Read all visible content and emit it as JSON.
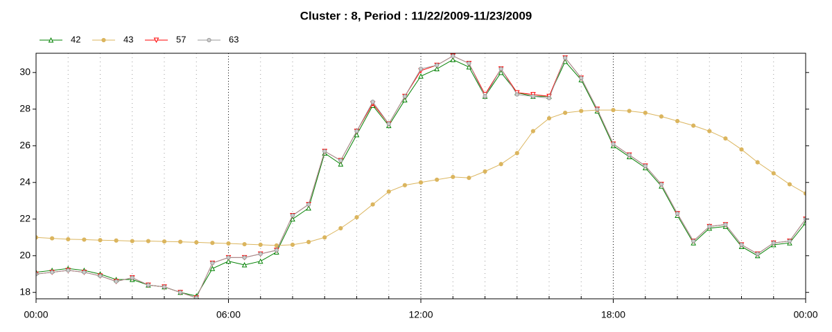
{
  "chart_data": {
    "type": "line",
    "title": "Cluster : 8, Period : 11/22/2009-11/23/2009",
    "x": [
      0,
      0.5,
      1,
      1.5,
      2,
      2.5,
      3,
      3.5,
      4,
      4.5,
      5,
      5.5,
      6,
      6.5,
      7,
      7.5,
      8,
      8.5,
      9,
      9.5,
      10,
      10.5,
      11,
      11.5,
      12,
      12.5,
      13,
      13.5,
      14,
      14.5,
      15,
      15.5,
      16,
      16.5,
      17,
      17.5,
      18,
      18.5,
      19,
      19.5,
      20,
      20.5,
      21,
      21.5,
      22,
      22.5,
      23,
      23.5,
      24
    ],
    "xlim": [
      0,
      24
    ],
    "xticks": [
      {
        "value": 0,
        "label": "00:00"
      },
      {
        "value": 6,
        "label": "06:00"
      },
      {
        "value": 12,
        "label": "12:00"
      },
      {
        "value": 18,
        "label": "18:00"
      },
      {
        "value": 24,
        "label": "00:00"
      }
    ],
    "xminorticks": [
      1,
      2,
      3,
      4,
      5,
      7,
      8,
      9,
      10,
      11,
      13,
      14,
      15,
      16,
      17,
      19,
      20,
      21,
      22,
      23
    ],
    "ylim": [
      17.65,
      31.05
    ],
    "yticks": [
      18,
      20,
      22,
      24,
      26,
      28,
      30
    ],
    "grid": "x",
    "legend": "top-left",
    "series": [
      {
        "name": "42",
        "color": "#008000",
        "marker": "triangle",
        "values": [
          19.1,
          19.2,
          19.3,
          19.2,
          19.0,
          18.7,
          18.7,
          18.4,
          18.3,
          18.0,
          17.8,
          19.3,
          19.7,
          19.5,
          19.7,
          20.2,
          22.0,
          22.6,
          25.6,
          25.0,
          26.6,
          28.2,
          27.1,
          28.5,
          29.8,
          30.2,
          30.7,
          30.3,
          28.7,
          30.0,
          28.9,
          28.7,
          28.7,
          30.6,
          29.6,
          27.9,
          26.0,
          25.4,
          24.8,
          23.8,
          22.2,
          20.7,
          21.5,
          21.6,
          20.5,
          20.0,
          20.6,
          20.7,
          21.8
        ]
      },
      {
        "name": "43",
        "color": "#dbb55e",
        "marker": "circle",
        "values": [
          21.0,
          20.95,
          20.9,
          20.88,
          20.85,
          20.83,
          20.8,
          20.8,
          20.78,
          20.76,
          20.73,
          20.7,
          20.67,
          20.63,
          20.6,
          20.56,
          20.6,
          20.75,
          21.0,
          21.5,
          22.1,
          22.8,
          23.5,
          23.85,
          24.0,
          24.15,
          24.3,
          24.25,
          24.6,
          25.0,
          25.6,
          26.8,
          27.5,
          27.8,
          27.9,
          27.95,
          27.95,
          27.9,
          27.8,
          27.6,
          27.35,
          27.1,
          26.8,
          26.4,
          25.8,
          25.1,
          24.5,
          23.9,
          23.4
        ]
      },
      {
        "name": "57",
        "color": "#ff0000",
        "marker": "triangle-down",
        "values": [
          19.0,
          19.1,
          19.2,
          19.1,
          18.9,
          18.6,
          18.8,
          18.4,
          18.3,
          18.0,
          17.7,
          19.6,
          19.9,
          19.9,
          20.1,
          20.3,
          22.2,
          22.8,
          25.7,
          25.2,
          26.8,
          28.3,
          27.2,
          28.7,
          30.1,
          30.4,
          30.9,
          30.5,
          28.8,
          30.2,
          28.9,
          28.8,
          28.7,
          30.8,
          29.7,
          28.0,
          26.1,
          25.5,
          24.9,
          23.9,
          22.3,
          20.8,
          21.6,
          21.7,
          20.6,
          20.1,
          20.7,
          20.8,
          22.0
        ]
      },
      {
        "name": "63",
        "color": "#999999",
        "marker": "circle",
        "values": [
          19.0,
          19.1,
          19.2,
          19.1,
          18.9,
          18.6,
          18.8,
          18.4,
          18.3,
          18.0,
          17.7,
          19.6,
          19.9,
          19.9,
          20.1,
          20.3,
          22.2,
          22.8,
          25.7,
          25.2,
          26.8,
          28.4,
          27.2,
          28.7,
          30.2,
          30.4,
          30.9,
          30.5,
          28.7,
          30.2,
          28.8,
          28.7,
          28.6,
          30.8,
          29.7,
          28.0,
          26.1,
          25.5,
          24.9,
          23.9,
          22.3,
          20.8,
          21.6,
          21.7,
          20.6,
          20.1,
          20.7,
          20.8,
          22.0
        ]
      }
    ]
  }
}
